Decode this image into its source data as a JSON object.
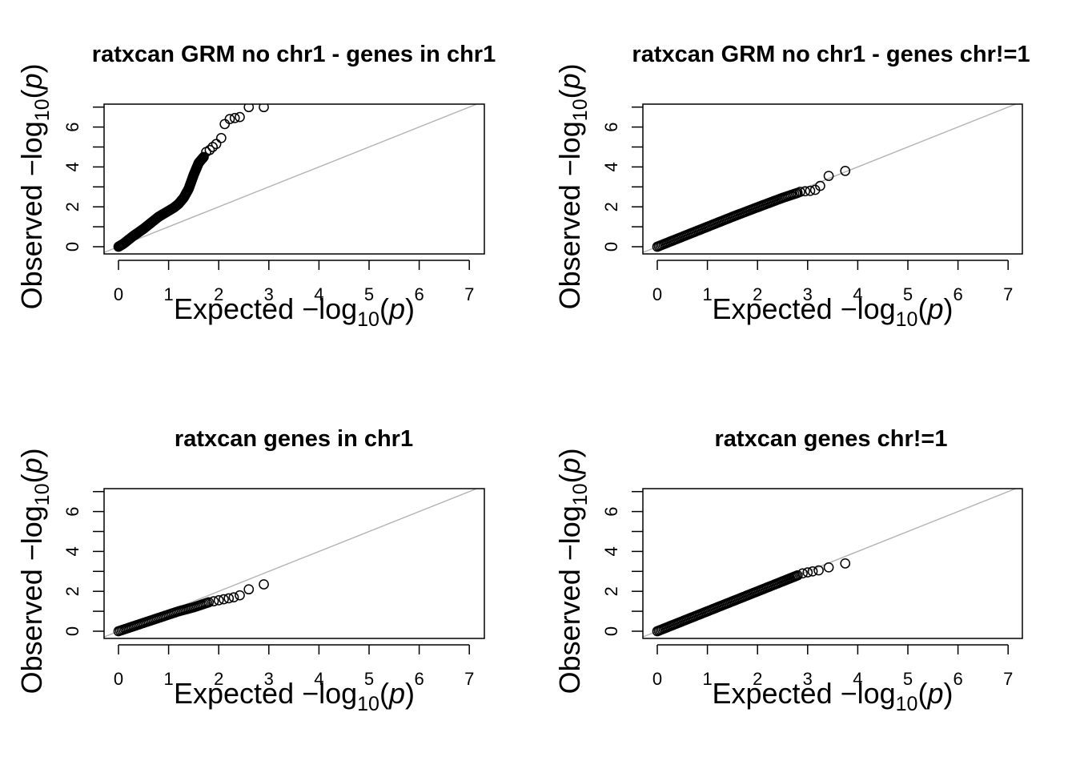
{
  "figure": {
    "background": "#ffffff",
    "point_color": "#000000",
    "reference_line_color": "#b3b3b3"
  },
  "chart_data": [
    {
      "type": "scatter",
      "title": "ratxcan GRM no chr1 - genes in chr1",
      "xlabel": "Expected  −log10(p)",
      "ylabel": "Observed  −log10(p)",
      "xlim": [
        0,
        7
      ],
      "ylim": [
        0,
        7
      ],
      "xticks": [
        0,
        1,
        2,
        3,
        4,
        5,
        6,
        7
      ],
      "yticks": [
        0,
        2,
        4,
        6
      ],
      "reference_line": {
        "from": [
          0,
          0
        ],
        "to": [
          7,
          7
        ]
      },
      "curve": [
        [
          0,
          0
        ],
        [
          0.1,
          0.15
        ],
        [
          0.2,
          0.35
        ],
        [
          0.3,
          0.55
        ],
        [
          0.4,
          0.72
        ],
        [
          0.5,
          0.9
        ],
        [
          0.6,
          1.1
        ],
        [
          0.7,
          1.3
        ],
        [
          0.8,
          1.5
        ],
        [
          0.9,
          1.65
        ],
        [
          1.0,
          1.8
        ],
        [
          1.1,
          1.95
        ],
        [
          1.2,
          2.15
        ],
        [
          1.3,
          2.45
        ],
        [
          1.4,
          2.9
        ],
        [
          1.5,
          3.6
        ],
        [
          1.6,
          4.2
        ],
        [
          1.7,
          4.5
        ]
      ],
      "points": [
        [
          1.75,
          4.75
        ],
        [
          1.82,
          4.85
        ],
        [
          1.88,
          5.0
        ],
        [
          1.95,
          5.15
        ],
        [
          2.05,
          5.45
        ],
        [
          2.12,
          6.15
        ],
        [
          2.22,
          6.4
        ],
        [
          2.32,
          6.45
        ],
        [
          2.42,
          6.5
        ],
        [
          2.6,
          7.0
        ],
        [
          2.9,
          7.0
        ]
      ]
    },
    {
      "type": "scatter",
      "title": "ratxcan GRM no chr1 - genes chr!=1",
      "xlabel": "Expected  −log10(p)",
      "ylabel": "Observed  −log10(p)",
      "xlim": [
        0,
        7
      ],
      "ylim": [
        0,
        7
      ],
      "xticks": [
        0,
        1,
        2,
        3,
        4,
        5,
        6,
        7
      ],
      "yticks": [
        0,
        2,
        4,
        6
      ],
      "reference_line": {
        "from": [
          0,
          0
        ],
        "to": [
          7,
          7
        ]
      },
      "curve": [
        [
          0,
          0
        ],
        [
          0.5,
          0.5
        ],
        [
          1.0,
          1.0
        ],
        [
          1.5,
          1.5
        ],
        [
          2.0,
          1.98
        ],
        [
          2.5,
          2.45
        ],
        [
          2.8,
          2.7
        ]
      ],
      "points": [
        [
          2.85,
          2.75
        ],
        [
          2.95,
          2.78
        ],
        [
          3.05,
          2.8
        ],
        [
          3.15,
          2.85
        ],
        [
          3.25,
          3.05
        ],
        [
          3.42,
          3.55
        ],
        [
          3.75,
          3.8
        ]
      ]
    },
    {
      "type": "scatter",
      "title": "ratxcan genes in chr1",
      "xlabel": "Expected  −log10(p)",
      "ylabel": "Observed  −log10(p)",
      "xlim": [
        0,
        7
      ],
      "ylim": [
        0,
        7
      ],
      "xticks": [
        0,
        1,
        2,
        3,
        4,
        5,
        6,
        7
      ],
      "yticks": [
        0,
        2,
        4,
        6
      ],
      "reference_line": {
        "from": [
          0,
          0
        ],
        "to": [
          7,
          7
        ]
      },
      "curve": [
        [
          0,
          0
        ],
        [
          0.3,
          0.25
        ],
        [
          0.6,
          0.5
        ],
        [
          0.9,
          0.75
        ],
        [
          1.2,
          1.0
        ],
        [
          1.5,
          1.2
        ],
        [
          1.8,
          1.45
        ]
      ],
      "points": [
        [
          1.9,
          1.5
        ],
        [
          2.0,
          1.55
        ],
        [
          2.1,
          1.6
        ],
        [
          2.2,
          1.65
        ],
        [
          2.3,
          1.7
        ],
        [
          2.42,
          1.8
        ],
        [
          2.6,
          2.1
        ],
        [
          2.9,
          2.35
        ]
      ]
    },
    {
      "type": "scatter",
      "title": "ratxcan genes chr!=1",
      "xlabel": "Expected  −log10(p)",
      "ylabel": "Observed  −log10(p)",
      "xlim": [
        0,
        7
      ],
      "ylim": [
        0,
        7
      ],
      "xticks": [
        0,
        1,
        2,
        3,
        4,
        5,
        6,
        7
      ],
      "yticks": [
        0,
        2,
        4,
        6
      ],
      "reference_line": {
        "from": [
          0,
          0
        ],
        "to": [
          7,
          7
        ]
      },
      "curve": [
        [
          0,
          0
        ],
        [
          0.5,
          0.5
        ],
        [
          1.0,
          1.0
        ],
        [
          1.5,
          1.5
        ],
        [
          2.0,
          2.0
        ],
        [
          2.5,
          2.5
        ],
        [
          2.8,
          2.8
        ]
      ],
      "points": [
        [
          2.9,
          2.9
        ],
        [
          3.0,
          2.95
        ],
        [
          3.1,
          3.0
        ],
        [
          3.22,
          3.05
        ],
        [
          3.42,
          3.2
        ],
        [
          3.75,
          3.4
        ]
      ]
    }
  ]
}
